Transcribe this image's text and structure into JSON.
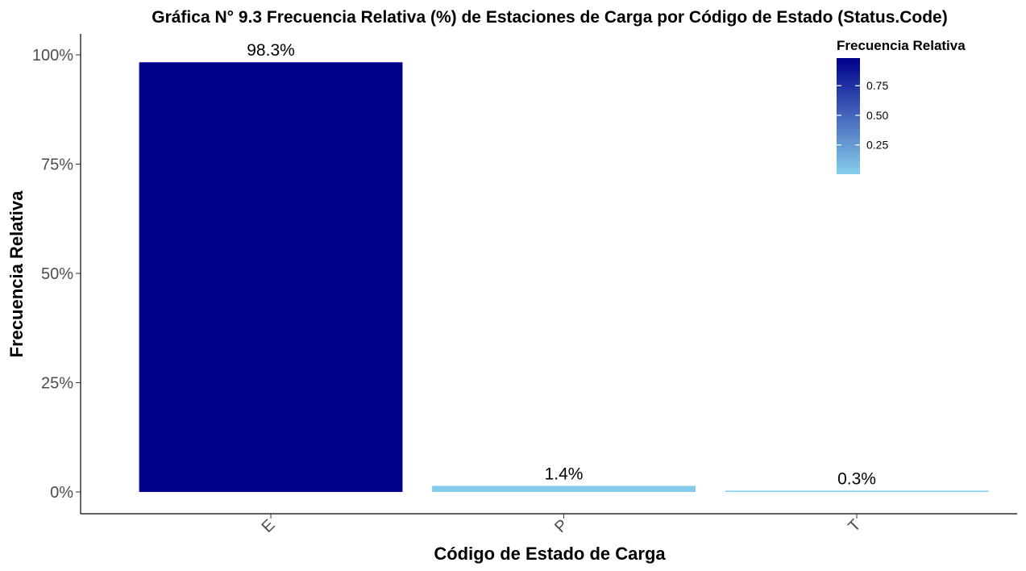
{
  "chart_data": {
    "type": "bar",
    "title": "Gráfica N° 9.3 Frecuencia Relativa (%) de Estaciones de Carga por Código de Estado (Status.Code)",
    "xlabel": "Código de Estado de Carga",
    "ylabel": "Frecuencia Relativa",
    "categories": [
      "E",
      "P",
      "T"
    ],
    "values": [
      0.983,
      0.014,
      0.003
    ],
    "data_labels": [
      "98.3%",
      "1.4%",
      "0.3%"
    ],
    "ylim": [
      0,
      1
    ],
    "yticks": [
      0,
      0.25,
      0.5,
      0.75,
      1
    ],
    "ytick_labels": [
      "0%",
      "25%",
      "50%",
      "75%",
      "100%"
    ],
    "grid": false,
    "legend": {
      "title": "Frecuencia Relativa",
      "placement": "top-right",
      "type": "colorbar",
      "ticks": [
        0.25,
        0.5,
        0.75
      ],
      "tick_labels": [
        "0.25",
        "0.50",
        "0.75"
      ],
      "range": [
        0.003,
        0.983
      ]
    },
    "colors": {
      "low": "#87CEEB",
      "high": "#00008B"
    }
  }
}
